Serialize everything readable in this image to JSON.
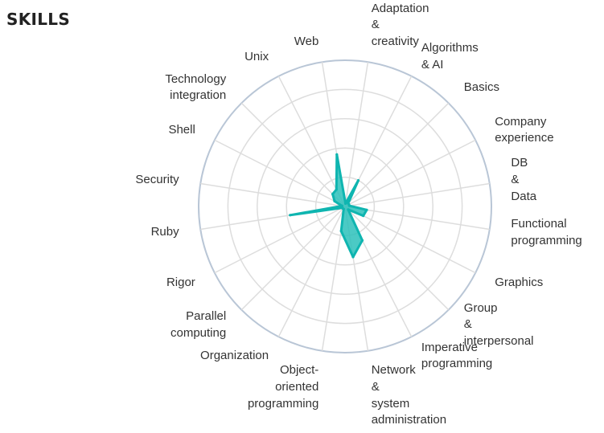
{
  "page": {
    "title": "SKILLS"
  },
  "colors": {
    "title": "#222222",
    "ring_outer": "#b9c6d6",
    "ring_inner": "#dddddd",
    "spoke": "#dddddd",
    "series_stroke": "#0fb5b0",
    "series_fill": "#2cc1bb"
  },
  "chart_data": {
    "type": "radar",
    "rmax": 10,
    "rings": [
      2,
      4,
      6,
      8,
      10
    ],
    "grid": true,
    "categories": [
      "Adaptation & creativity",
      "Algorithms & AI",
      "Basics",
      "Company experience",
      "DB & Data",
      "Functional programming",
      "Graphics",
      "Group & interpersonal",
      "Imperative programming",
      "Network & system administration",
      "Object-oriented programming",
      "Organization",
      "Parallel computing",
      "Rigor",
      "Ruby",
      "Security",
      "Shell",
      "Technology integration",
      "Unix",
      "Web"
    ],
    "label_lines": [
      [
        "Adaptation",
        "&",
        "creativity"
      ],
      [
        "Algorithms",
        "& AI"
      ],
      [
        "Basics"
      ],
      [
        "Company",
        "experience"
      ],
      [
        "DB",
        "&",
        "Data"
      ],
      [
        "Functional",
        "programming"
      ],
      [
        "Graphics"
      ],
      [
        "Group",
        "&",
        "interpersonal"
      ],
      [
        "Imperative",
        "programming"
      ],
      [
        "Network",
        "&",
        "system",
        "administration"
      ],
      [
        "Object-",
        "oriented",
        "programming"
      ],
      [
        "Organization"
      ],
      [
        "Parallel",
        "computing"
      ],
      [
        "Rigor"
      ],
      [
        "Ruby"
      ],
      [
        "Security"
      ],
      [
        "Shell"
      ],
      [
        "Technology",
        "integration"
      ],
      [
        "Unix"
      ],
      [
        "Web"
      ]
    ],
    "series": [
      {
        "values": [
          0.2,
          2.0,
          0.3,
          0.3,
          0.3,
          1.5,
          1.4,
          0.3,
          2.6,
          3.5,
          1.7,
          0.2,
          0.2,
          0.2,
          3.8,
          0.2,
          0.8,
          1.2,
          1.3,
          3.6
        ]
      }
    ]
  }
}
